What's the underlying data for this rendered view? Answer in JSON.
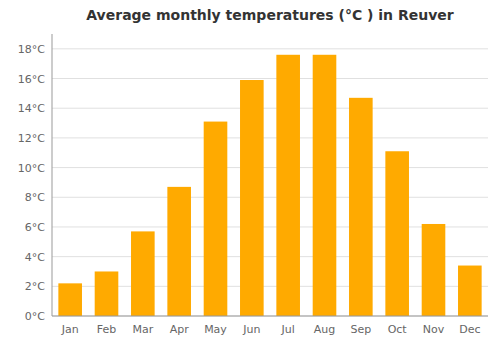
{
  "chart_data": {
    "type": "bar",
    "title": "Average monthly temperatures (°C ) in Reuver",
    "categories": [
      "Jan",
      "Feb",
      "Mar",
      "Apr",
      "May",
      "Jun",
      "Jul",
      "Aug",
      "Sep",
      "Oct",
      "Nov",
      "Dec"
    ],
    "values": [
      2.2,
      3.0,
      5.7,
      8.7,
      13.1,
      15.9,
      17.6,
      17.6,
      14.7,
      11.1,
      6.2,
      3.4
    ],
    "color": "#FFAA00",
    "ylim": [
      0,
      19
    ],
    "yticks": [
      {
        "value": 0,
        "label": "0°C"
      },
      {
        "value": 2,
        "label": "2°C"
      },
      {
        "value": 4,
        "label": "4°C"
      },
      {
        "value": 6,
        "label": "6°C"
      },
      {
        "value": 8,
        "label": "8°C"
      },
      {
        "value": 10,
        "label": "10°C"
      },
      {
        "value": 12,
        "label": "12°C"
      },
      {
        "value": 14,
        "label": "14°C"
      },
      {
        "value": 16,
        "label": "16°C"
      },
      {
        "value": 18,
        "label": "18°C"
      }
    ],
    "grid": true
  }
}
